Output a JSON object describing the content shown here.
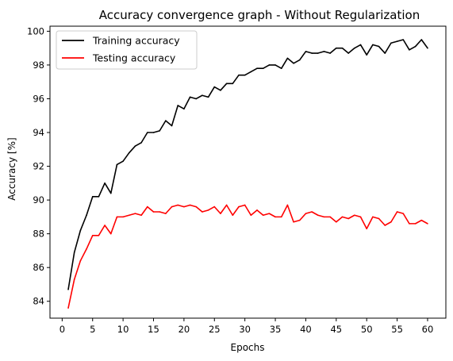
{
  "chart_data": {
    "type": "line",
    "title": "Accuracy convergence graph - Without Regularization",
    "xlabel": "Epochs",
    "ylabel": "Accuracy [%]",
    "xlim": [
      -2,
      63
    ],
    "ylim": [
      83.0,
      100.3
    ],
    "x_ticks": [
      0,
      5,
      10,
      15,
      20,
      25,
      30,
      35,
      40,
      45,
      50,
      55,
      60
    ],
    "y_ticks": [
      84,
      86,
      88,
      90,
      92,
      94,
      96,
      98,
      100
    ],
    "grid": false,
    "legend_position": "top-left",
    "x": [
      1,
      2,
      3,
      4,
      5,
      6,
      7,
      8,
      9,
      10,
      11,
      12,
      13,
      14,
      15,
      16,
      17,
      18,
      19,
      20,
      21,
      22,
      23,
      24,
      25,
      26,
      27,
      28,
      29,
      30,
      31,
      32,
      33,
      34,
      35,
      36,
      37,
      38,
      39,
      40,
      41,
      42,
      43,
      44,
      45,
      46,
      47,
      48,
      49,
      50,
      51,
      52,
      53,
      54,
      55,
      56,
      57,
      58,
      59,
      60
    ],
    "series": [
      {
        "name": "Training accuracy",
        "color": "#000000",
        "values": [
          84.7,
          86.9,
          88.2,
          89.1,
          90.2,
          90.2,
          91.0,
          90.4,
          92.1,
          92.3,
          92.8,
          93.2,
          93.4,
          94.0,
          94.0,
          94.1,
          94.7,
          94.4,
          95.6,
          95.4,
          96.1,
          96.0,
          96.2,
          96.1,
          96.7,
          96.5,
          96.9,
          96.9,
          97.4,
          97.4,
          97.6,
          97.8,
          97.8,
          98.0,
          98.0,
          97.8,
          98.4,
          98.1,
          98.3,
          98.8,
          98.7,
          98.7,
          98.8,
          98.7,
          99.0,
          99.0,
          98.7,
          99.0,
          99.2,
          98.6,
          99.2,
          99.1,
          98.7,
          99.3,
          99.4,
          99.5,
          98.9,
          99.1,
          99.5,
          99.0
        ]
      },
      {
        "name": "Testing accuracy",
        "color": "#ff0000",
        "values": [
          83.6,
          85.3,
          86.4,
          87.1,
          87.9,
          87.9,
          88.5,
          88.0,
          89.0,
          89.0,
          89.1,
          89.2,
          89.1,
          89.6,
          89.3,
          89.3,
          89.2,
          89.6,
          89.7,
          89.6,
          89.7,
          89.6,
          89.3,
          89.4,
          89.6,
          89.2,
          89.7,
          89.1,
          89.6,
          89.7,
          89.1,
          89.4,
          89.1,
          89.2,
          89.0,
          89.0,
          89.7,
          88.7,
          88.8,
          89.2,
          89.3,
          89.1,
          89.0,
          89.0,
          88.7,
          89.0,
          88.9,
          89.1,
          89.0,
          88.3,
          89.0,
          88.9,
          88.5,
          88.7,
          89.3,
          89.2,
          88.6,
          88.6,
          88.8,
          88.6
        ]
      }
    ]
  }
}
